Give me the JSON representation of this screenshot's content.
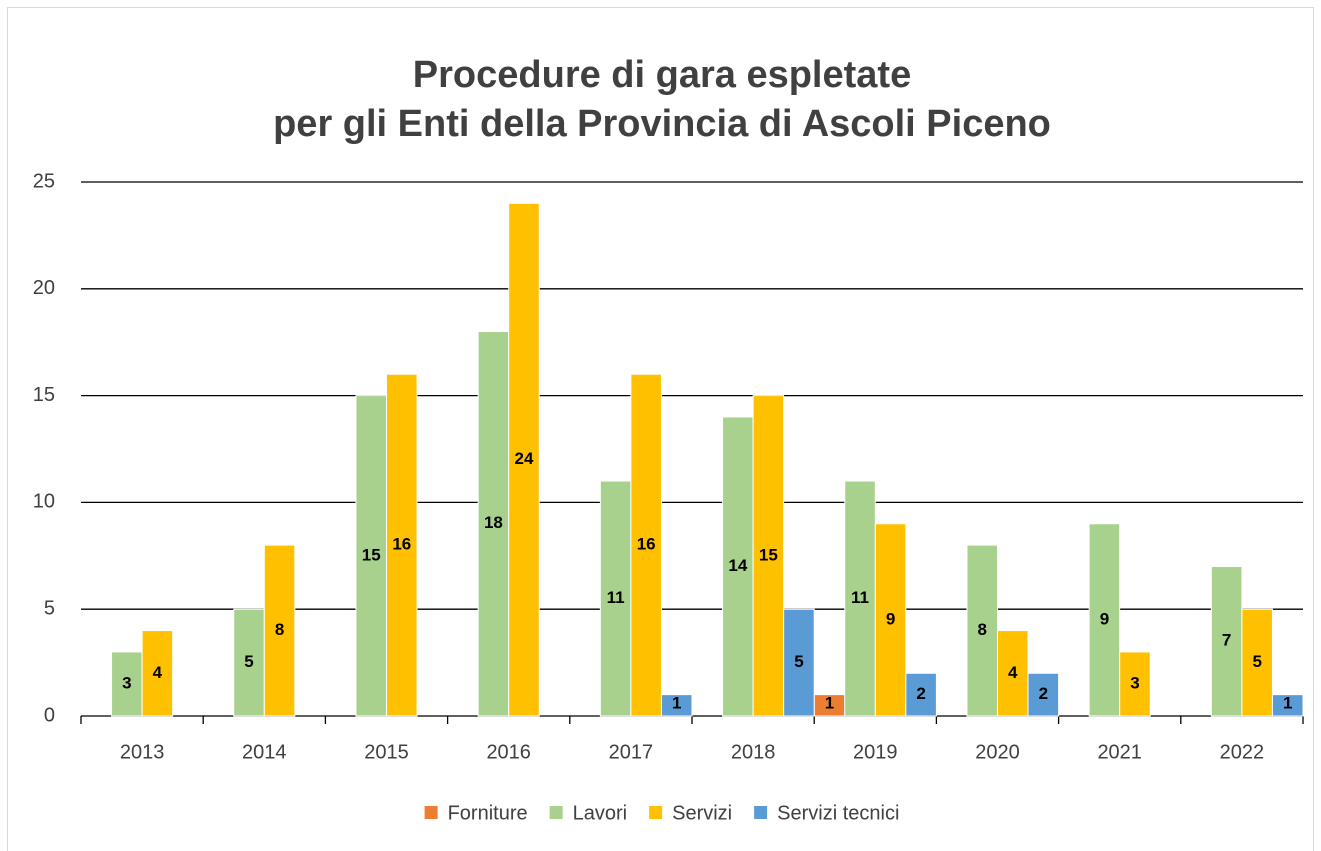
{
  "chart_data": {
    "type": "bar",
    "title": [
      "Procedure di gara espletate",
      "per gli Enti della Provincia di Ascoli Piceno"
    ],
    "categories": [
      "2013",
      "2014",
      "2015",
      "2016",
      "2017",
      "2018",
      "2019",
      "2020",
      "2021",
      "2022"
    ],
    "series": [
      {
        "name": "Forniture",
        "color": "#ed7d31",
        "values": [
          null,
          null,
          null,
          null,
          null,
          null,
          1,
          null,
          null,
          null
        ]
      },
      {
        "name": "Lavori",
        "color": "#a9d18e",
        "values": [
          3,
          5,
          15,
          18,
          11,
          14,
          11,
          8,
          9,
          7
        ]
      },
      {
        "name": "Servizi",
        "color": "#ffc000",
        "values": [
          4,
          8,
          16,
          24,
          16,
          15,
          9,
          4,
          3,
          5
        ]
      },
      {
        "name": "Servizi tecnici",
        "color": "#5b9bd5",
        "values": [
          null,
          null,
          null,
          null,
          1,
          5,
          2,
          2,
          null,
          1
        ]
      }
    ],
    "ylim": [
      0,
      25
    ],
    "yticks": [
      0,
      5,
      10,
      15,
      20,
      25
    ],
    "grid": true,
    "legend": "bottom"
  }
}
